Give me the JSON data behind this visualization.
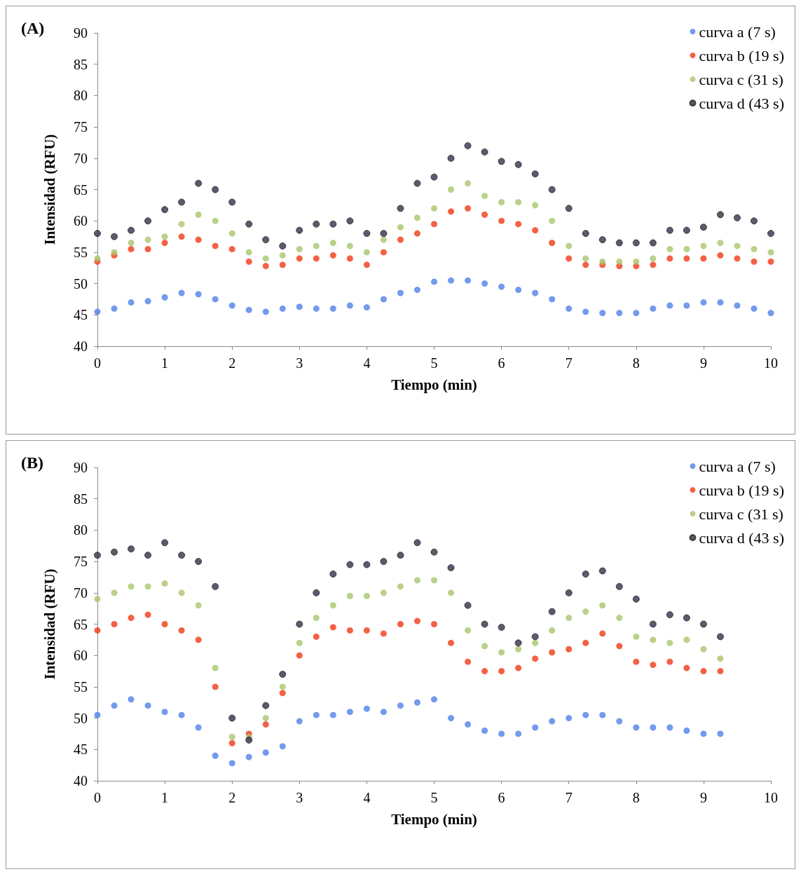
{
  "chart_data": [
    {
      "type": "scatter",
      "title": "(A)",
      "xlabel": "Tiempo (min)",
      "ylabel": "Intensidad (RFU)",
      "xlim": [
        0,
        10
      ],
      "xticks": [
        0,
        1,
        2,
        3,
        4,
        5,
        6,
        7,
        8,
        9,
        10
      ],
      "ylim": [
        40,
        90
      ],
      "yticks": [
        40,
        45,
        50,
        55,
        60,
        65,
        70,
        75,
        80,
        85,
        90
      ],
      "grid": false,
      "legend": "top right",
      "marker": "circle",
      "x": [
        0,
        0.25,
        0.5,
        0.75,
        1,
        1.25,
        1.5,
        1.75,
        2,
        2.25,
        2.5,
        2.75,
        3,
        3.25,
        3.5,
        3.75,
        4,
        4.25,
        4.5,
        4.75,
        5,
        5.25,
        5.5,
        5.75,
        6,
        6.25,
        6.5,
        6.75,
        7,
        7.25,
        7.5,
        7.75,
        8,
        8.25,
        8.5,
        8.75,
        9,
        9.25,
        9.5,
        9.75,
        10
      ],
      "series": [
        {
          "name": "curva a (7 s)",
          "color": "#4f81e8",
          "values": [
            45.5,
            46,
            47,
            47.2,
            47.8,
            48.5,
            48.3,
            47.5,
            46.5,
            45.8,
            45.5,
            46,
            46.3,
            46,
            46,
            46.5,
            46.2,
            47.5,
            48.5,
            49,
            50.3,
            50.5,
            50.5,
            50,
            49.5,
            49,
            48.5,
            47.5,
            46,
            45.5,
            45.3,
            45.3,
            45.3,
            46,
            46.5,
            46.5,
            47,
            47,
            46.5,
            46,
            45.3
          ]
        },
        {
          "name": "curva b (19 s)",
          "color": "#f03a17",
          "values": [
            53.5,
            54.5,
            55.5,
            55.5,
            56.5,
            57.5,
            57,
            56,
            55.5,
            53.5,
            52.8,
            53,
            54,
            54,
            54.5,
            54,
            53,
            55,
            57,
            58,
            59.5,
            61.5,
            62,
            61,
            60,
            59.5,
            58.5,
            56.5,
            54,
            53,
            53,
            52.8,
            52.8,
            53,
            54,
            54,
            54,
            54.5,
            54,
            53.5,
            53.5
          ]
        },
        {
          "name": "curva c (31 s)",
          "color": "#a8c66b",
          "values": [
            54,
            55,
            56.5,
            57,
            57.5,
            59.5,
            61,
            60,
            58,
            55,
            54,
            54.5,
            55.5,
            56,
            56.5,
            56,
            55,
            57,
            59,
            60.5,
            62,
            65,
            66,
            64,
            63,
            63,
            62.5,
            60,
            56,
            54,
            53.5,
            53.5,
            53.5,
            54,
            55.5,
            55.5,
            56,
            56.5,
            56,
            55.5,
            55
          ]
        },
        {
          "name": "curva d (43 s)",
          "color": "#3a2e48",
          "values": [
            58,
            57.5,
            58.5,
            60,
            61.8,
            63,
            66,
            65,
            63,
            59.5,
            57,
            56,
            58.5,
            59.5,
            59.5,
            60,
            58,
            58,
            62,
            66,
            67,
            70,
            72,
            71,
            69.5,
            69,
            67.5,
            65,
            62,
            58,
            57,
            56.5,
            56.5,
            56.5,
            58.5,
            58.5,
            59,
            61,
            60.5,
            60,
            58
          ]
        }
      ]
    },
    {
      "type": "scatter",
      "title": "(B)",
      "xlabel": "Tiempo (min)",
      "ylabel": "Intensidad (RFU)",
      "xlim": [
        0,
        10
      ],
      "xticks": [
        0,
        1,
        2,
        3,
        4,
        5,
        6,
        7,
        8,
        9,
        10
      ],
      "ylim": [
        40,
        90
      ],
      "yticks": [
        40,
        45,
        50,
        55,
        60,
        65,
        70,
        75,
        80,
        85,
        90
      ],
      "grid": false,
      "legend": "top right",
      "marker": "circle",
      "x": [
        0,
        0.25,
        0.5,
        0.75,
        1,
        1.25,
        1.5,
        1.75,
        2,
        2.25,
        2.5,
        2.75,
        3,
        3.25,
        3.5,
        3.75,
        4,
        4.25,
        4.5,
        4.75,
        5,
        5.25,
        5.5,
        5.75,
        6,
        6.25,
        6.5,
        6.75,
        7,
        7.25,
        7.5,
        7.75,
        8,
        8.25,
        8.5,
        8.75,
        9,
        9.25
      ],
      "series": [
        {
          "name": "curva a (7 s)",
          "color": "#4f81e8",
          "values": [
            50.5,
            52,
            53,
            52,
            51,
            50.5,
            48.5,
            44,
            42.8,
            43.8,
            44.5,
            45.5,
            49.5,
            50.5,
            50.5,
            51,
            51.5,
            51,
            52,
            52.5,
            53,
            50,
            49,
            48,
            47.5,
            47.5,
            48.5,
            49.5,
            50,
            50.5,
            50.5,
            49.5,
            48.5,
            48.5,
            48.5,
            48,
            47.5,
            47.5
          ]
        },
        {
          "name": "curva b (19 s)",
          "color": "#f03a17",
          "values": [
            64,
            65,
            66,
            66.5,
            65,
            64,
            62.5,
            55,
            46,
            47.5,
            49,
            54,
            60,
            63,
            64.5,
            64,
            64,
            63.5,
            65,
            65.5,
            65,
            62,
            59,
            57.5,
            57.5,
            58,
            59.5,
            60.5,
            61,
            62,
            63.5,
            61.5,
            59,
            58.5,
            59,
            58,
            57.5,
            57.5
          ]
        },
        {
          "name": "curva c (31 s)",
          "color": "#a8c66b",
          "values": [
            69,
            70,
            71,
            71,
            71.5,
            70,
            68,
            58,
            47,
            47,
            50,
            55,
            62,
            66,
            68,
            69.5,
            69.5,
            70,
            71,
            72,
            72,
            70,
            64,
            61.5,
            60.5,
            61,
            62,
            64,
            66,
            67,
            68,
            66,
            63,
            62.5,
            62,
            62.5,
            61,
            59.5
          ]
        },
        {
          "name": "curva d (43 s)",
          "color": "#3a2e48",
          "values": [
            76,
            76.5,
            77,
            76,
            78,
            76,
            75,
            71,
            50,
            46.5,
            52,
            57,
            65,
            70,
            73,
            74.5,
            74.5,
            75,
            76,
            78,
            76.5,
            74,
            68,
            65,
            64.5,
            62,
            63,
            67,
            70,
            73,
            73.5,
            71,
            69,
            65,
            66.5,
            66,
            65,
            63
          ]
        }
      ]
    }
  ]
}
